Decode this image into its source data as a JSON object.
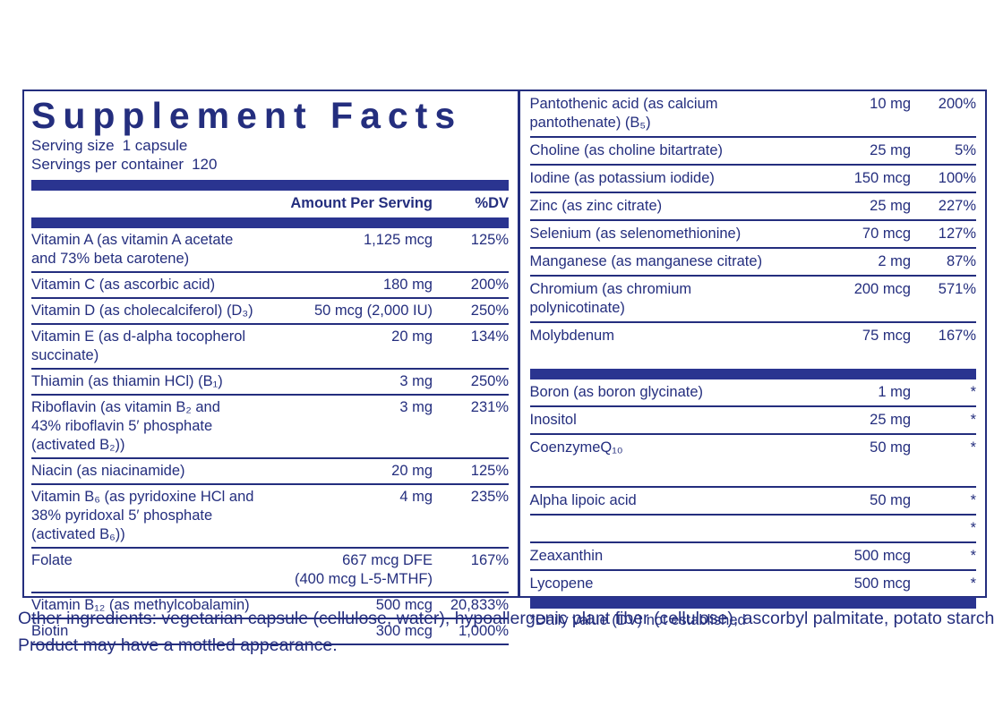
{
  "colors": {
    "navy": "#242e7e",
    "bar": "#2a3490"
  },
  "label": {
    "title": "Supplement Facts",
    "serving_size_label": "Serving size",
    "serving_size_value": "1 capsule",
    "servings_label": "Servings per container",
    "servings_value": "120",
    "amount_header": "Amount Per Serving",
    "dv_header": "%DV",
    "footnote": "*Daily value (DV) not established"
  },
  "left_table": {
    "rows": [
      {
        "name": [
          "Vitamin A (as vitamin A acetate",
          "and 73% beta carotene)"
        ],
        "amount": [
          "1,125 mcg"
        ],
        "dv": "125%"
      },
      {
        "name": [
          "Vitamin C (as ascorbic acid)"
        ],
        "amount": [
          "180 mg"
        ],
        "dv": "200%"
      },
      {
        "name": [
          "Vitamin D (as cholecalciferol) (D₃)"
        ],
        "amount": [
          "50 mcg (2,000 IU)"
        ],
        "dv": "250%"
      },
      {
        "name": [
          "Vitamin E (as d-alpha tocopherol succinate)"
        ],
        "amount": [
          "20 mg"
        ],
        "dv": "134%"
      },
      {
        "name": [
          "Thiamin (as thiamin HCl) (B₁)"
        ],
        "amount": [
          "3 mg"
        ],
        "dv": "250%"
      },
      {
        "name": [
          "Riboflavin (as vitamin B₂ and",
          "43% riboflavin 5′ phosphate (activated B₂))"
        ],
        "amount": [
          "3 mg"
        ],
        "dv": "231%"
      },
      {
        "name": [
          "Niacin (as niacinamide)"
        ],
        "amount": [
          "20 mg"
        ],
        "dv": "125%"
      },
      {
        "name": [
          "Vitamin B₆ (as pyridoxine HCl and",
          "38% pyridoxal 5′ phosphate (activated B₆))"
        ],
        "amount": [
          "4 mg"
        ],
        "dv": "235%"
      },
      {
        "name": [
          "Folate"
        ],
        "amount": [
          "667 mcg DFE",
          "(400 mcg L-5-MTHF)"
        ],
        "dv": "167%"
      },
      {
        "name": [
          "Vitamin B₁₂ (as methylcobalamin)"
        ],
        "amount": [
          "500 mcg"
        ],
        "dv": "20,833%"
      },
      {
        "name": [
          "Biotin"
        ],
        "amount": [
          "300 mcg"
        ],
        "dv": "1,000%"
      }
    ]
  },
  "right_table": {
    "sections": [
      {
        "rows": [
          {
            "name": [
              "Pantothenic acid (as calcium pantothenate) (B₅)"
            ],
            "amount": [
              "10 mg"
            ],
            "dv": "200%"
          },
          {
            "name": [
              "Choline (as choline bitartrate)"
            ],
            "amount": [
              "25 mg"
            ],
            "dv": "5%"
          },
          {
            "name": [
              "Iodine (as potassium iodide)"
            ],
            "amount": [
              "150 mcg"
            ],
            "dv": "100%"
          },
          {
            "name": [
              "Zinc (as zinc citrate)"
            ],
            "amount": [
              "25 mg"
            ],
            "dv": "227%"
          },
          {
            "name": [
              "Selenium (as selenomethionine)"
            ],
            "amount": [
              "70 mcg"
            ],
            "dv": "127%"
          },
          {
            "name": [
              "Manganese (as manganese citrate)"
            ],
            "amount": [
              "2 mg"
            ],
            "dv": "87%"
          },
          {
            "name": [
              "Chromium (as chromium polynicotinate)"
            ],
            "amount": [
              "200 mcg"
            ],
            "dv": "571%"
          },
          {
            "name": [
              "Molybdenum"
            ],
            "amount": [
              "75 mcg"
            ],
            "dv": "167%"
          }
        ]
      },
      {
        "rows": [
          {
            "name": [
              "Boron (as boron glycinate)"
            ],
            "amount": [
              "1 mg"
            ],
            "dv": "*"
          },
          {
            "name": [
              "Inositol"
            ],
            "amount": [
              "25 mg"
            ],
            "dv": "*"
          },
          {
            "name": [
              "CoenzymeQ₁₀"
            ],
            "amount": [
              "50 mg"
            ],
            "dv": "*"
          }
        ]
      },
      {
        "rows": [
          {
            "name": [
              "Alpha lipoic acid"
            ],
            "amount": [
              "50 mg"
            ],
            "dv": "*"
          },
          {
            "name": [],
            "amount": [],
            "dv": "*"
          },
          {
            "name": [
              "Zeaxanthin"
            ],
            "amount": [
              "500 mcg"
            ],
            "dv": "*"
          },
          {
            "name": [
              "Lycopene"
            ],
            "amount": [
              "500 mcg"
            ],
            "dv": "*"
          }
        ]
      }
    ]
  },
  "bottom_text": {
    "line1": "Other ingredients: vegetarian capsule (cellulose, water), hypoallergenic plant fiber (cellulose), ascorbyl palmitate, potato starch",
    "line2": "Product may have a mottled appearance."
  }
}
